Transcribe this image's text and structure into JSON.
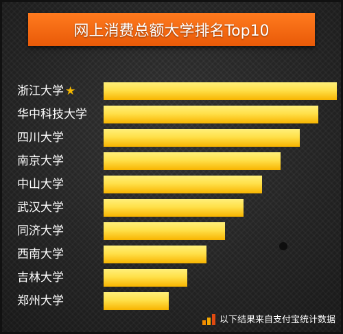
{
  "title": "网上消费总额大学排名Top10",
  "footer_text": "以下结果来自支付宝统计数据",
  "colors": {
    "title_bg": "#f46a12",
    "bar_top": "#fff07a",
    "bar_bottom": "#f8b400",
    "star": "#f5b800"
  },
  "chart_data": {
    "type": "bar",
    "orientation": "horizontal",
    "categories": [
      "浙江大学",
      "华中科技大学",
      "四川大学",
      "南京大学",
      "中山大学",
      "武汉大学",
      "同济大学",
      "西南大学",
      "吉林大学",
      "郑州大学"
    ],
    "values": [
      100,
      92,
      84,
      76,
      68,
      60,
      52,
      44,
      36,
      28
    ],
    "value_unit": "relative (no axis shown)",
    "title": "网上消费总额大学排名Top10",
    "highlight": {
      "category": "浙江大学",
      "icon": "star-icon"
    },
    "grid": false,
    "legend": "none"
  }
}
